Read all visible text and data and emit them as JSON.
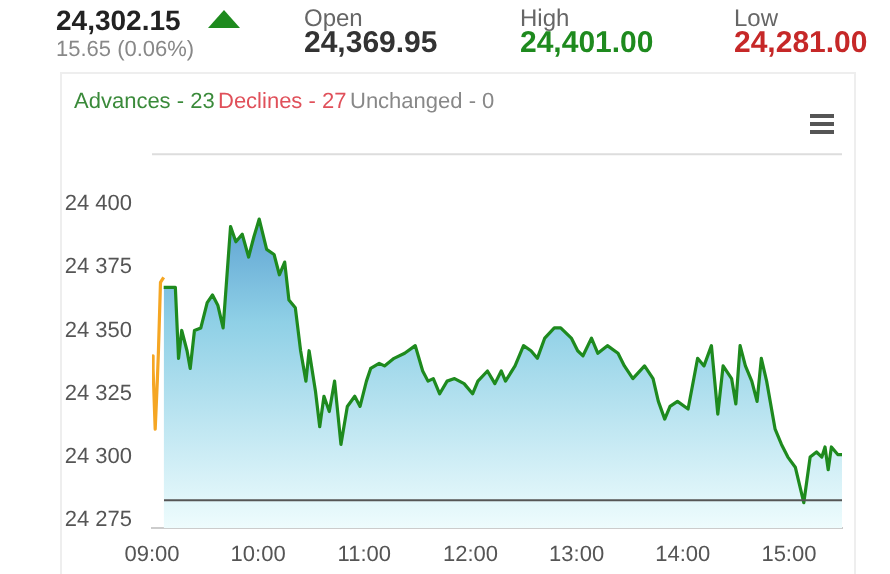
{
  "chart_data": {
    "type": "area",
    "annotations": [
      "24,302.15",
      "15.65 (0.06%)",
      "Open",
      "24,369.95",
      "High",
      "24,401.00",
      "Low",
      "24,281.00",
      "Advances - 23",
      "Declines - 27",
      "Unchanged - 0"
    ],
    "series": [
      {
        "type": "line",
        "color": "#f5a623",
        "x": [
          9.0,
          9.01,
          9.03,
          9.05,
          9.06,
          9.08,
          9.11
        ],
        "values": [
          24340,
          24335,
          24311,
          24330,
          24341,
          24369,
          24371
        ]
      },
      {
        "color": "#1e8a1e",
        "x": [
          9.11,
          9.22,
          9.25,
          9.28,
          9.33,
          9.36,
          9.4,
          9.46,
          9.52,
          9.57,
          9.62,
          9.67,
          9.74,
          9.79,
          9.85,
          9.91,
          9.96,
          10.01,
          10.08,
          10.15,
          10.2,
          10.25,
          10.29,
          10.35,
          10.4,
          10.45,
          10.48,
          10.54,
          10.58,
          10.62,
          10.67,
          10.72,
          10.78,
          10.84,
          10.91,
          10.96,
          11.02,
          11.06,
          11.14,
          11.19,
          11.28,
          11.38,
          11.48,
          11.55,
          11.6,
          11.65,
          11.71,
          11.78,
          11.85,
          11.94,
          12.02,
          12.07,
          12.16,
          12.23,
          12.29,
          12.33,
          12.42,
          12.5,
          12.57,
          12.63,
          12.7,
          12.79,
          12.85,
          12.95,
          13.01,
          13.06,
          13.14,
          13.2,
          13.29,
          13.39,
          13.45,
          13.53,
          13.64,
          13.72,
          13.77,
          13.83,
          13.88,
          13.95,
          14.05,
          14.14,
          14.2,
          14.27,
          14.33,
          14.38,
          14.46,
          14.5,
          14.54,
          14.59,
          14.65,
          14.7,
          14.74,
          14.79,
          14.87,
          14.93,
          14.99,
          15.06,
          15.14,
          15.2,
          15.26,
          15.31,
          15.34,
          15.37,
          15.4,
          15.46,
          15.5
        ],
        "values": [
          24367,
          24367,
          24339,
          24350,
          24342,
          24335,
          24350,
          24351,
          24361,
          24364,
          24360,
          24351,
          24391,
          24385,
          24388,
          24379,
          24387,
          24394,
          24382,
          24380,
          24372,
          24377,
          24362,
          24359,
          24342,
          24330,
          24342,
          24326,
          24312,
          24324,
          24318,
          24330,
          24305,
          24320,
          24324,
          24320,
          24330,
          24335,
          24337,
          24336,
          24339,
          24341,
          24344,
          24334,
          24330,
          24331,
          24325,
          24330,
          24331,
          24329,
          24325,
          24330,
          24334,
          24329,
          24334,
          24330,
          24336,
          24344,
          24342,
          24339,
          24347,
          24351,
          24351,
          24347,
          24342,
          24340,
          24347,
          24341,
          24344,
          24341,
          24336,
          24331,
          24336,
          24331,
          24322,
          24315,
          24320,
          24322,
          24319,
          24339,
          24336,
          24344,
          24317,
          24336,
          24331,
          24321,
          24344,
          24336,
          24330,
          24322,
          24339,
          24330,
          24311,
          24305,
          24300,
          24296,
          24282,
          24300,
          24302,
          24300,
          24304,
          24295,
          24304,
          24301,
          24301
        ]
      }
    ],
    "xlim": [
      9,
      15.5
    ],
    "xticks": [
      {
        "value": 9,
        "label": "09:00"
      },
      {
        "value": 10,
        "label": "10:00"
      },
      {
        "value": 11,
        "label": "11:00"
      },
      {
        "value": 12,
        "label": "12:00"
      },
      {
        "value": 13,
        "label": "13:00"
      },
      {
        "value": 14,
        "label": "14:00"
      },
      {
        "value": 15,
        "label": "15:00"
      }
    ],
    "ylim": [
      24272,
      24420
    ],
    "yticks": [
      {
        "value": 24275,
        "label": "24 275"
      },
      {
        "value": 24300,
        "label": "24 300"
      },
      {
        "value": 24325,
        "label": "24 325"
      },
      {
        "value": 24350,
        "label": "24 350"
      },
      {
        "value": 24375,
        "label": "24 375"
      },
      {
        "value": 24400,
        "label": "24 400"
      }
    ],
    "ref_lines": [
      {
        "axis": "y",
        "value": 24283,
        "color": "#555555"
      }
    ],
    "grid": false,
    "legend": false
  }
}
